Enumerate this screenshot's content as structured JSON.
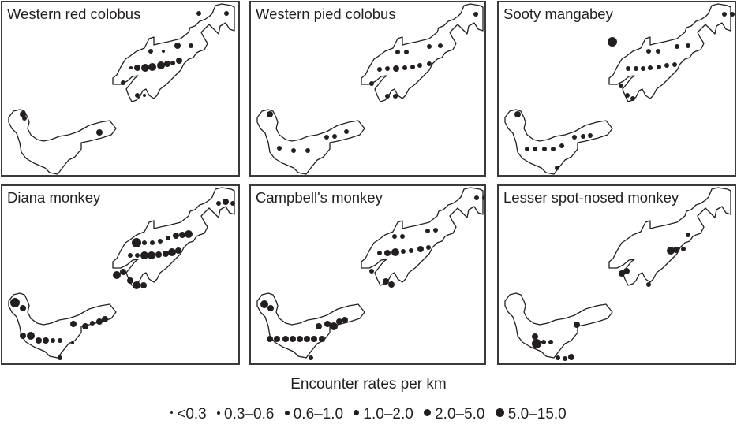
{
  "panels": [
    {
      "title": "Western red colobus"
    },
    {
      "title": "Western pied colobus"
    },
    {
      "title": "Sooty mangabey"
    },
    {
      "title": "Diana monkey"
    },
    {
      "title": "Campbell's monkey"
    },
    {
      "title": "Lesser spot-nosed monkey"
    }
  ],
  "legend": {
    "title": "Encounter rates per km",
    "items": [
      {
        "label": "<0.3",
        "size": 3
      },
      {
        "label": "0.3–0.6",
        "size": 4
      },
      {
        "label": "0.6–1.0",
        "size": 6
      },
      {
        "label": "1.0–2.0",
        "size": 7
      },
      {
        "label": "2.0–5.0",
        "size": 9
      },
      {
        "label": "5.0–15.0",
        "size": 11
      }
    ]
  },
  "dots": {
    "p0": [
      [
        249,
        14,
        3
      ],
      [
        284,
        14,
        3
      ],
      [
        188,
        62,
        3
      ],
      [
        204,
        62,
        2
      ],
      [
        222,
        55,
        4
      ],
      [
        239,
        55,
        3
      ],
      [
        163,
        83,
        2
      ],
      [
        171,
        83,
        4
      ],
      [
        181,
        83,
        5
      ],
      [
        190,
        82,
        5
      ],
      [
        201,
        80,
        5
      ],
      [
        209,
        78,
        4
      ],
      [
        216,
        77,
        3
      ],
      [
        224,
        74,
        4
      ],
      [
        153,
        102,
        3
      ],
      [
        171,
        118,
        3
      ],
      [
        180,
        118,
        2
      ],
      [
        26,
        142,
        4
      ],
      [
        123,
        165,
        4
      ],
      [
        28,
        147,
        3
      ]
    ],
    "p1": [
      [
        285,
        15,
        3
      ],
      [
        298,
        15,
        2
      ],
      [
        186,
        63,
        3
      ],
      [
        197,
        63,
        3
      ],
      [
        226,
        56,
        3
      ],
      [
        240,
        55,
        3
      ],
      [
        163,
        85,
        3
      ],
      [
        173,
        84,
        3
      ],
      [
        184,
        84,
        4
      ],
      [
        195,
        83,
        3
      ],
      [
        205,
        82,
        3
      ],
      [
        214,
        80,
        3
      ],
      [
        226,
        78,
        3
      ],
      [
        153,
        103,
        3
      ],
      [
        173,
        119,
        3
      ],
      [
        183,
        119,
        3
      ],
      [
        24,
        142,
        4
      ],
      [
        96,
        171,
        3
      ],
      [
        106,
        170,
        3
      ],
      [
        121,
        164,
        3
      ],
      [
        36,
        185,
        3
      ],
      [
        54,
        188,
        3
      ],
      [
        72,
        188,
        3
      ]
    ],
    "p2": [
      [
        286,
        15,
        3
      ],
      [
        296,
        15,
        3
      ],
      [
        190,
        62,
        3
      ],
      [
        202,
        62,
        3
      ],
      [
        226,
        56,
        3
      ],
      [
        240,
        55,
        3
      ],
      [
        164,
        84,
        3
      ],
      [
        174,
        84,
        3
      ],
      [
        183,
        84,
        3
      ],
      [
        192,
        83,
        3
      ],
      [
        203,
        82,
        3
      ],
      [
        213,
        80,
        3
      ],
      [
        223,
        79,
        3
      ],
      [
        144,
        50,
        6
      ],
      [
        155,
        106,
        3
      ],
      [
        163,
        118,
        3
      ],
      [
        170,
        122,
        3
      ],
      [
        24,
        142,
        4
      ],
      [
        96,
        171,
        3
      ],
      [
        107,
        170,
        3
      ],
      [
        116,
        169,
        3
      ],
      [
        36,
        186,
        3
      ],
      [
        46,
        186,
        3
      ],
      [
        58,
        186,
        3
      ],
      [
        69,
        186,
        3
      ],
      [
        80,
        182,
        3
      ],
      [
        74,
        210,
        3
      ]
    ],
    "p3": [
      [
        274,
        22,
        3
      ],
      [
        283,
        20,
        4
      ],
      [
        292,
        22,
        3
      ],
      [
        170,
        72,
        6
      ],
      [
        180,
        72,
        3
      ],
      [
        190,
        72,
        3
      ],
      [
        200,
        70,
        3
      ],
      [
        210,
        66,
        3
      ],
      [
        220,
        63,
        4
      ],
      [
        228,
        62,
        4
      ],
      [
        236,
        61,
        5
      ],
      [
        162,
        88,
        3
      ],
      [
        171,
        88,
        3
      ],
      [
        180,
        88,
        5
      ],
      [
        189,
        88,
        5
      ],
      [
        198,
        87,
        4
      ],
      [
        207,
        86,
        4
      ],
      [
        215,
        84,
        5
      ],
      [
        223,
        82,
        4
      ],
      [
        145,
        113,
        5
      ],
      [
        153,
        109,
        4
      ],
      [
        162,
        120,
        4
      ],
      [
        170,
        126,
        5
      ],
      [
        179,
        126,
        4
      ],
      [
        16,
        148,
        6
      ],
      [
        26,
        155,
        4
      ],
      [
        90,
        175,
        4
      ],
      [
        105,
        178,
        4
      ],
      [
        114,
        174,
        3
      ],
      [
        123,
        172,
        4
      ],
      [
        130,
        169,
        4
      ],
      [
        26,
        190,
        4
      ],
      [
        36,
        190,
        5
      ],
      [
        46,
        196,
        4
      ],
      [
        55,
        196,
        4
      ],
      [
        64,
        196,
        3
      ],
      [
        73,
        196,
        3
      ],
      [
        89,
        199,
        2
      ],
      [
        73,
        218,
        3
      ]
    ],
    "p4": [
      [
        286,
        15,
        3
      ],
      [
        296,
        15,
        3
      ],
      [
        182,
        64,
        3
      ],
      [
        192,
        64,
        3
      ],
      [
        224,
        57,
        3
      ],
      [
        234,
        56,
        3
      ],
      [
        163,
        85,
        3
      ],
      [
        173,
        85,
        4
      ],
      [
        183,
        84,
        5
      ],
      [
        193,
        83,
        3
      ],
      [
        203,
        82,
        3
      ],
      [
        215,
        80,
        4
      ],
      [
        225,
        78,
        3
      ],
      [
        153,
        108,
        3
      ],
      [
        171,
        121,
        4
      ],
      [
        178,
        125,
        4
      ],
      [
        17,
        150,
        5
      ],
      [
        25,
        155,
        4
      ],
      [
        86,
        178,
        4
      ],
      [
        97,
        175,
        4
      ],
      [
        105,
        178,
        5
      ],
      [
        112,
        172,
        4
      ],
      [
        119,
        170,
        4
      ],
      [
        24,
        194,
        4
      ],
      [
        33,
        194,
        4
      ],
      [
        44,
        194,
        4
      ],
      [
        53,
        194,
        4
      ],
      [
        62,
        194,
        4
      ],
      [
        71,
        194,
        4
      ],
      [
        80,
        194,
        4
      ],
      [
        90,
        194,
        4
      ],
      [
        76,
        218,
        3
      ]
    ],
    "p5": [
      [
        240,
        62,
        3
      ],
      [
        218,
        82,
        5
      ],
      [
        225,
        81,
        4
      ],
      [
        234,
        80,
        3
      ],
      [
        156,
        111,
        4
      ],
      [
        162,
        108,
        4
      ],
      [
        190,
        125,
        3
      ],
      [
        99,
        176,
        4
      ],
      [
        46,
        191,
        4
      ],
      [
        48,
        200,
        6
      ],
      [
        57,
        198,
        3
      ],
      [
        66,
        198,
        3
      ],
      [
        75,
        218,
        3
      ],
      [
        92,
        217,
        4
      ],
      [
        84,
        219,
        3
      ]
    ]
  }
}
